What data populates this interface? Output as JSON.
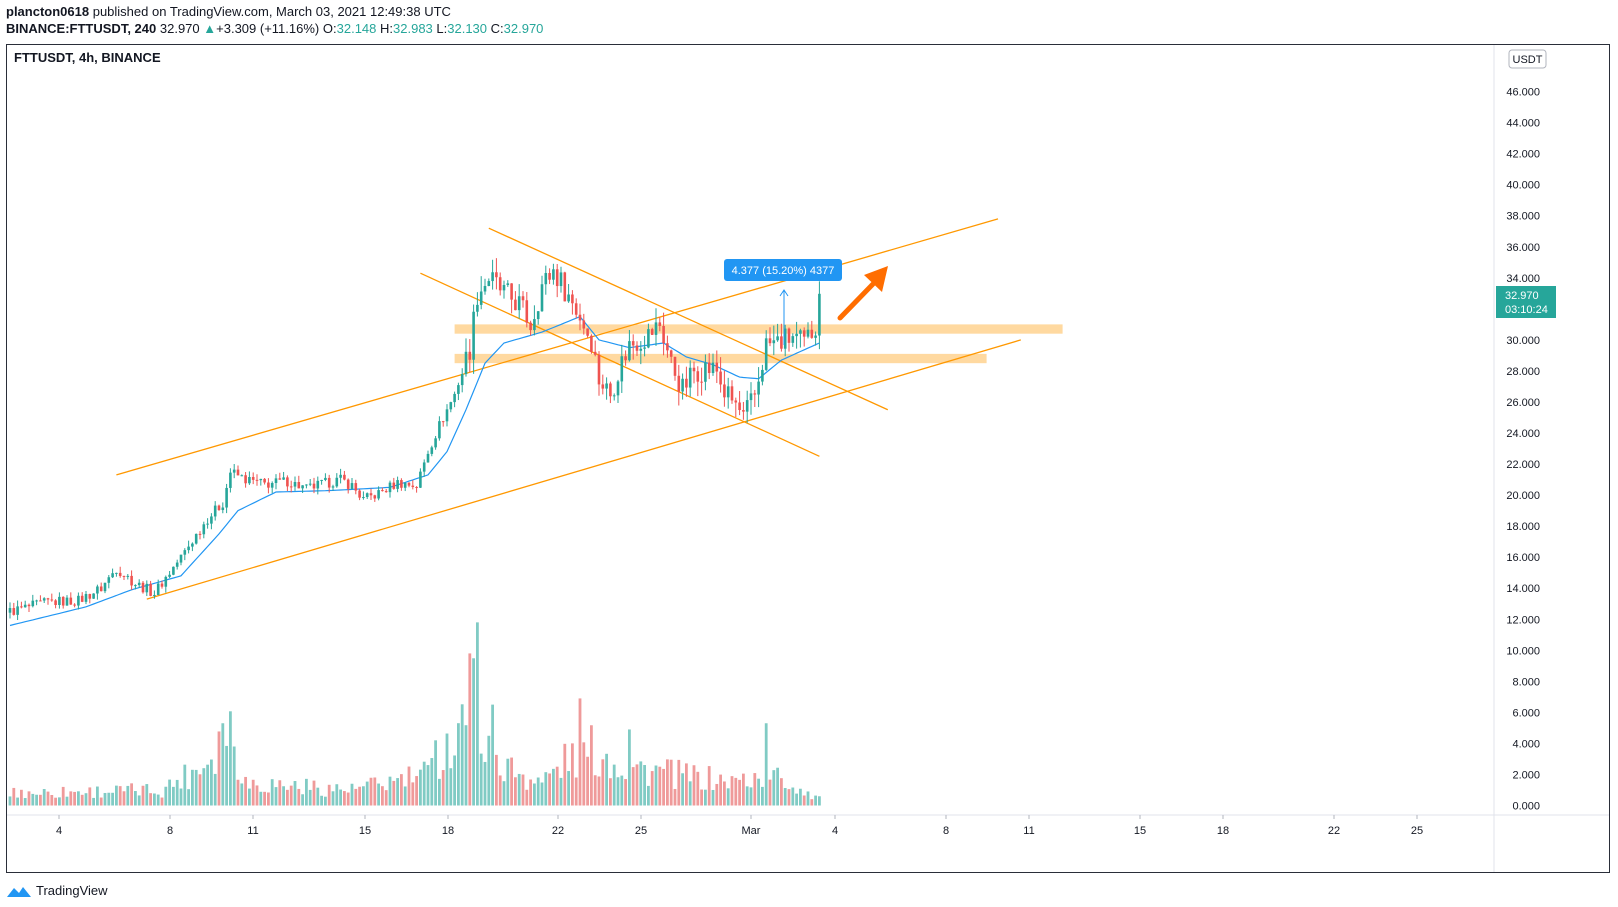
{
  "header": {
    "author": "plancton0618",
    "published": "published on TradingView.com, March 03, 2021 12:49:38 UTC",
    "symbol_line": "BINANCE:FTTUSDT, 240",
    "last": "32.970",
    "change": "+3.309 (+11.16%)",
    "o_label": "O:",
    "o": "32.148",
    "h_label": "H:",
    "h": "32.983",
    "l_label": "L:",
    "l": "32.130",
    "c_label": "C:",
    "c": "32.970"
  },
  "chart_title": "FTTUSDT, 4h, BINANCE",
  "currency_label": "USDT",
  "price_tag": {
    "price": "32.970",
    "countdown": "03:10:24"
  },
  "measure_label": "4.377 (15.20%) 4377",
  "footer": {
    "brand": "TradingView"
  },
  "colors": {
    "up": "#26a69a",
    "down": "#ef5350",
    "ema": "#2196f3",
    "channel": "#ff9800",
    "zone": "#ffcc80",
    "arrow": "#ff6d00",
    "vol_up": "#80cbc4",
    "vol_down": "#ef9a9a"
  },
  "chart_data": {
    "type": "candlestick",
    "title": "FTTUSDT, 4h, BINANCE",
    "ylabel": "USDT",
    "ylim": [
      0,
      48
    ],
    "price_axis_ticks": [
      "46.000",
      "44.000",
      "42.000",
      "40.000",
      "38.000",
      "36.000",
      "34.000",
      "32.000",
      "30.000",
      "28.000",
      "26.000",
      "24.000",
      "22.000",
      "20.000",
      "18.000",
      "16.000",
      "14.000",
      "12.000",
      "10.000",
      "8.000",
      "6.000",
      "4.000",
      "2.000",
      "0.000"
    ],
    "time_axis_ticks": [
      "4",
      "8",
      "11",
      "15",
      "18",
      "22",
      "25",
      "Mar",
      "4",
      "8",
      "11",
      "15",
      "18",
      "22",
      "25"
    ],
    "anchors": [
      {
        "i": 0,
        "p": 12.5
      },
      {
        "i": 10,
        "p": 13.1
      },
      {
        "i": 18,
        "p": 13.2
      },
      {
        "i": 24,
        "p": 14.0
      },
      {
        "i": 28,
        "p": 15.3
      },
      {
        "i": 33,
        "p": 14.3
      },
      {
        "i": 38,
        "p": 13.7
      },
      {
        "i": 45,
        "p": 16.0
      },
      {
        "i": 52,
        "p": 18.5
      },
      {
        "i": 56,
        "p": 19.5
      },
      {
        "i": 58,
        "p": 21.5
      },
      {
        "i": 62,
        "p": 21.0
      },
      {
        "i": 67,
        "p": 20.7
      },
      {
        "i": 73,
        "p": 20.9
      },
      {
        "i": 78,
        "p": 20.4
      },
      {
        "i": 82,
        "p": 20.7
      },
      {
        "i": 87,
        "p": 21.0
      },
      {
        "i": 90,
        "p": 20.6
      },
      {
        "i": 93,
        "p": 19.7
      },
      {
        "i": 97,
        "p": 20.1
      },
      {
        "i": 102,
        "p": 20.8
      },
      {
        "i": 107,
        "p": 20.6
      },
      {
        "i": 110,
        "p": 22.8
      },
      {
        "i": 113,
        "p": 24.5
      },
      {
        "i": 117,
        "p": 26.5
      },
      {
        "i": 121,
        "p": 29.5
      },
      {
        "i": 123,
        "p": 33.0
      },
      {
        "i": 126,
        "p": 34.0
      },
      {
        "i": 130,
        "p": 33.0
      },
      {
        "i": 134,
        "p": 32.3
      },
      {
        "i": 137,
        "p": 31.0
      },
      {
        "i": 140,
        "p": 33.5
      },
      {
        "i": 143,
        "p": 34.5
      },
      {
        "i": 146,
        "p": 33.3
      },
      {
        "i": 150,
        "p": 31.5
      },
      {
        "i": 153,
        "p": 30.0
      },
      {
        "i": 155,
        "p": 27.5
      },
      {
        "i": 158,
        "p": 26.5
      },
      {
        "i": 160,
        "p": 28.0
      },
      {
        "i": 163,
        "p": 29.7
      },
      {
        "i": 168,
        "p": 30.3
      },
      {
        "i": 171,
        "p": 31.0
      },
      {
        "i": 174,
        "p": 28.5
      },
      {
        "i": 177,
        "p": 26.8
      },
      {
        "i": 180,
        "p": 28.0
      },
      {
        "i": 183,
        "p": 28.2
      },
      {
        "i": 186,
        "p": 28.0
      },
      {
        "i": 188,
        "p": 26.6
      },
      {
        "i": 191,
        "p": 25.8
      },
      {
        "i": 193,
        "p": 24.9
      },
      {
        "i": 196,
        "p": 26.4
      },
      {
        "i": 199,
        "p": 29.7
      },
      {
        "i": 203,
        "p": 29.9
      },
      {
        "i": 206,
        "p": 30.2
      },
      {
        "i": 209,
        "p": 29.7
      },
      {
        "i": 212,
        "p": 31.0
      },
      {
        "i": 213,
        "p": 32.97
      }
    ],
    "ema_anchors": [
      {
        "i": 0,
        "p": 11.6
      },
      {
        "i": 20,
        "p": 12.8
      },
      {
        "i": 32,
        "p": 13.9
      },
      {
        "i": 45,
        "p": 14.8
      },
      {
        "i": 55,
        "p": 17.5
      },
      {
        "i": 60,
        "p": 19.0
      },
      {
        "i": 70,
        "p": 20.2
      },
      {
        "i": 85,
        "p": 20.3
      },
      {
        "i": 100,
        "p": 20.5
      },
      {
        "i": 110,
        "p": 21.3
      },
      {
        "i": 115,
        "p": 22.8
      },
      {
        "i": 120,
        "p": 25.5
      },
      {
        "i": 125,
        "p": 28.5
      },
      {
        "i": 130,
        "p": 29.8
      },
      {
        "i": 140,
        "p": 30.5
      },
      {
        "i": 150,
        "p": 31.5
      },
      {
        "i": 155,
        "p": 30.0
      },
      {
        "i": 163,
        "p": 29.5
      },
      {
        "i": 172,
        "p": 29.8
      },
      {
        "i": 178,
        "p": 28.9
      },
      {
        "i": 185,
        "p": 28.4
      },
      {
        "i": 192,
        "p": 27.6
      },
      {
        "i": 197,
        "p": 27.5
      },
      {
        "i": 203,
        "p": 28.7
      },
      {
        "i": 213,
        "p": 29.8
      }
    ],
    "volume_anchors": [
      {
        "i": 0,
        "v": 0.8
      },
      {
        "i": 40,
        "v": 1.0
      },
      {
        "i": 50,
        "v": 2.5
      },
      {
        "i": 58,
        "v": 5.0
      },
      {
        "i": 62,
        "v": 1.5
      },
      {
        "i": 90,
        "v": 1.0
      },
      {
        "i": 110,
        "v": 2.0
      },
      {
        "i": 116,
        "v": 4.0
      },
      {
        "i": 121,
        "v": 7.5
      },
      {
        "i": 124,
        "v": 5.5
      },
      {
        "i": 130,
        "v": 2.5
      },
      {
        "i": 140,
        "v": 1.5
      },
      {
        "i": 147,
        "v": 3.0
      },
      {
        "i": 153,
        "v": 3.5
      },
      {
        "i": 163,
        "v": 2.5
      },
      {
        "i": 175,
        "v": 2.0
      },
      {
        "i": 190,
        "v": 1.5
      },
      {
        "i": 200,
        "v": 2.0
      },
      {
        "i": 213,
        "v": 0.5
      }
    ],
    "volume_spikes": [
      {
        "i": 123,
        "v": 11.8
      },
      {
        "i": 121,
        "v": 9.8
      },
      {
        "i": 56,
        "v": 5.3
      },
      {
        "i": 150,
        "v": 6.9
      },
      {
        "i": 199,
        "v": 5.3
      },
      {
        "i": 163,
        "v": 4.9
      },
      {
        "i": 127,
        "v": 6.5
      },
      {
        "i": 112,
        "v": 4.2
      }
    ],
    "channel_upper": [
      {
        "i": 28,
        "p": 21.3
      },
      {
        "i": 260,
        "p": 37.8
      }
    ],
    "channel_lower": [
      {
        "i": 36,
        "p": 13.3
      },
      {
        "i": 266,
        "p": 30.0
      }
    ],
    "wedge_upper": [
      {
        "i": 126,
        "p": 37.2
      },
      {
        "i": 231,
        "p": 25.5
      }
    ],
    "wedge_lower": [
      {
        "i": 108,
        "p": 34.3
      },
      {
        "i": 213,
        "p": 22.5
      }
    ],
    "zones": [
      {
        "from_i": 117,
        "to_i": 277,
        "low": 30.4,
        "high": 31.0
      },
      {
        "from_i": 117,
        "to_i": 257,
        "low": 28.5,
        "high": 29.1
      }
    ]
  }
}
